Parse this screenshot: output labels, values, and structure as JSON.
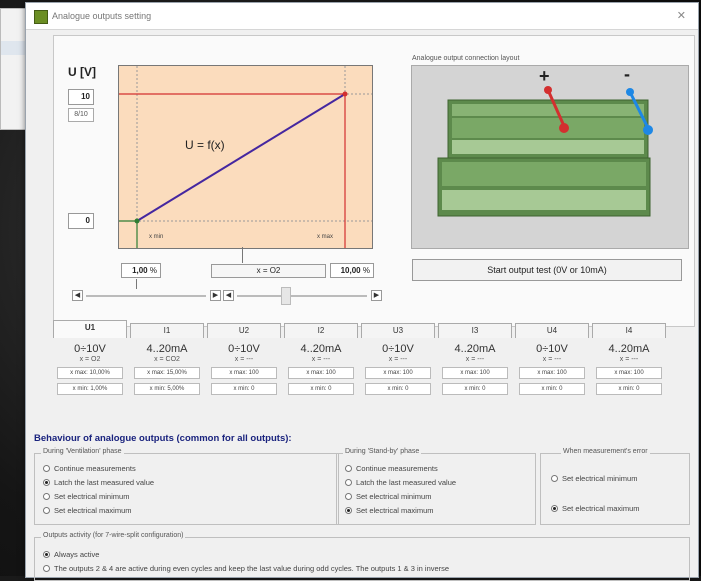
{
  "window": {
    "title": "Analogue outputs setting",
    "close_icon": "close-icon"
  },
  "graph": {
    "axis_label": "U [V]",
    "y_top_value": "10",
    "y_top_sub": "8/10",
    "y_bottom_value": "0",
    "formula": "U = f(x)",
    "xmin_label": "x min",
    "xmax_label": "x max",
    "xmin_value": "1,00",
    "xmax_value": "10,00",
    "unit": "%",
    "combo_value": "x = O2"
  },
  "connection": {
    "title": "Analogue output connection layout",
    "plus": "+",
    "minus": "-",
    "start_button": "Start output test (0V or 10mA)"
  },
  "tabs": [
    "U1",
    "I1",
    "U2",
    "I2",
    "U3",
    "I3",
    "U4",
    "I4"
  ],
  "columns": [
    {
      "range": "0÷10V",
      "sub": "x = O2",
      "max": "x max: 10,00%",
      "min": "x min: 1,00%"
    },
    {
      "range": "4..20mA",
      "sub": "x = CO2",
      "max": "x max: 15,00%",
      "min": "x min: 5,00%"
    },
    {
      "range": "0÷10V",
      "sub": "x = ---",
      "max": "x max: 100",
      "min": "x min: 0"
    },
    {
      "range": "4..20mA",
      "sub": "x = ---",
      "max": "x max: 100",
      "min": "x min: 0"
    },
    {
      "range": "0÷10V",
      "sub": "x = ---",
      "max": "x max: 100",
      "min": "x min: 0"
    },
    {
      "range": "4..20mA",
      "sub": "x = ---",
      "max": "x max: 100",
      "min": "x min: 0"
    },
    {
      "range": "0÷10V",
      "sub": "x = ---",
      "max": "x max: 100",
      "min": "x min: 0"
    },
    {
      "range": "4..20mA",
      "sub": "x = ---",
      "max": "x max: 100",
      "min": "x min: 0"
    }
  ],
  "behaviour": {
    "title": "Behaviour of analogue outputs (common for all outputs):",
    "ventilation": {
      "title": "During 'Ventilation' phase",
      "options": [
        "Continue measurements",
        "Latch the last measured value",
        "Set electrical minimum",
        "Set electrical maximum"
      ],
      "selected": 1
    },
    "standby": {
      "title": "During 'Stand-by' phase",
      "options": [
        "Continue measurements",
        "Latch the last measured value",
        "Set electrical minimum",
        "Set electrical maximum"
      ],
      "selected": 3
    },
    "error": {
      "title": "When measurement's error",
      "options": [
        "Set electrical minimum",
        "Set electrical maximum"
      ],
      "selected": 1
    },
    "activity": {
      "title": "Outputs activity (for 7-wire-split configuration)",
      "options": [
        "Always active",
        "The outputs 2 & 4 are active during even cycles and keep the last value during odd cycles. The outputs 1 & 3 in inverse"
      ],
      "selected": 0
    }
  }
}
